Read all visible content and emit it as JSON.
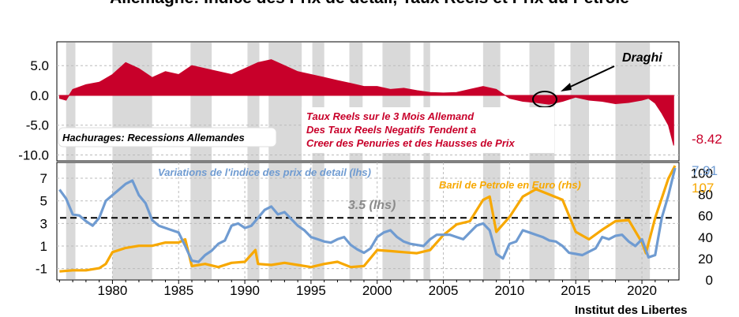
{
  "title": "Allemagne: Indice des Prix de detail, Taux Reels et Prix du Petrole",
  "credit": "Institut des Libertes",
  "colors": {
    "real_rate": "#c8002a",
    "inflation": "#6f9bd1",
    "oil": "#f7a800",
    "recession": "#d9d9d9",
    "threshold": "#000000"
  },
  "chart_data": [
    {
      "type": "area",
      "ylim": [
        -11,
        9
      ],
      "yticks": [
        5.0,
        0.0,
        -5.0,
        -10.0
      ],
      "ytick_labels": [
        "5.0",
        "0.0",
        "-5.0",
        "-10.0"
      ],
      "recessions": [
        [
          1976.5,
          1977.2
        ],
        [
          1980.0,
          1983.0
        ],
        [
          1985.9,
          1987.5
        ],
        [
          1990.2,
          1991.1
        ],
        [
          1991.8,
          1994.3
        ],
        [
          1995.1,
          1996.0
        ],
        [
          1997.9,
          1998.9
        ],
        [
          2000.4,
          2002.5
        ],
        [
          2003.5,
          2004.0
        ],
        [
          2008.0,
          2009.3
        ],
        [
          2011.5,
          2013.4
        ],
        [
          2014.6,
          2016.0
        ],
        [
          2018.0,
          2020.6
        ]
      ],
      "series": [
        {
          "name": "Taux Reels sur le 3 Mois Allemand",
          "x": [
            1976.0,
            1976.5,
            1977.0,
            1978.0,
            1979.0,
            1980.0,
            1981.0,
            1982.0,
            1983.0,
            1984.0,
            1985.0,
            1986.0,
            1987.0,
            1988.0,
            1989.0,
            1990.0,
            1991.0,
            1992.0,
            1993.0,
            1994.0,
            1995.0,
            1996.0,
            1997.0,
            1998.0,
            1999.0,
            2000.0,
            2001.0,
            2002.0,
            2003.0,
            2004.0,
            2005.0,
            2006.0,
            2007.0,
            2008.0,
            2009.0,
            2010.0,
            2011.0,
            2012.0,
            2013.0,
            2014.0,
            2015.0,
            2016.0,
            2017.0,
            2018.0,
            2019.0,
            2020.0,
            2020.5,
            2021.0,
            2021.5,
            2022.0,
            2022.4
          ],
          "values": [
            -0.5,
            -0.8,
            1.0,
            1.8,
            2.2,
            3.5,
            5.5,
            4.5,
            3.0,
            4.0,
            3.5,
            5.0,
            4.5,
            4.0,
            3.5,
            4.5,
            5.5,
            6.0,
            5.0,
            4.0,
            3.5,
            3.0,
            2.5,
            2.0,
            1.5,
            1.5,
            1.0,
            1.2,
            0.8,
            0.5,
            0.4,
            0.5,
            1.0,
            1.5,
            1.0,
            -0.5,
            -1.0,
            -1.2,
            -1.5,
            -1.0,
            -0.3,
            -0.8,
            -1.0,
            -1.4,
            -1.2,
            -0.8,
            -0.5,
            -1.3,
            -3.0,
            -5.0,
            -8.42
          ]
        }
      ],
      "last_value_label": "-8.42",
      "annotations": {
        "draghi": "Draghi",
        "legend_box": "Hachurages: Recessions Allemandes",
        "note_lines": [
          "Taux Reels sur le 3 Mois Allemand",
          "Des Taux Reels Negatifs Tendent a",
          "Creer des Penuries et des Hausses de Prix"
        ]
      }
    },
    {
      "type": "line",
      "x_ticks": [
        1980,
        1985,
        1990,
        1995,
        2000,
        2005,
        2010,
        2015,
        2020
      ],
      "xlim": [
        1975.8,
        2022.8
      ],
      "y_left": {
        "ylim": [
          -2,
          8.4
        ],
        "ticks": [
          7,
          5,
          3,
          1,
          -1
        ]
      },
      "y_right": {
        "ylim": [
          0,
          110
        ],
        "ticks": [
          100,
          80,
          60,
          40,
          20,
          0
        ]
      },
      "threshold": {
        "value": 3.5,
        "label": "3.5 (lhs)"
      },
      "series": [
        {
          "name": "Variations de l'indice des prix de detail (lhs)",
          "axis": "left",
          "x": [
            1976.0,
            1976.5,
            1977.0,
            1977.5,
            1978.0,
            1978.5,
            1979.0,
            1979.5,
            1980.0,
            1980.5,
            1981.0,
            1981.5,
            1982.0,
            1982.5,
            1983.0,
            1983.5,
            1984.0,
            1984.5,
            1985.0,
            1985.5,
            1986.0,
            1986.5,
            1987.0,
            1987.5,
            1988.0,
            1988.5,
            1989.0,
            1989.5,
            1990.0,
            1990.5,
            1991.0,
            1991.5,
            1992.0,
            1992.5,
            1993.0,
            1993.5,
            1994.0,
            1994.5,
            1995.0,
            1995.5,
            1996.0,
            1996.5,
            1997.0,
            1997.5,
            1998.0,
            1998.5,
            1999.0,
            1999.5,
            2000.0,
            2000.5,
            2001.0,
            2001.5,
            2002.0,
            2002.5,
            2003.0,
            2003.5,
            2004.0,
            2004.5,
            2005.0,
            2005.5,
            2006.0,
            2006.5,
            2007.0,
            2007.5,
            2008.0,
            2008.5,
            2009.0,
            2009.5,
            2010.0,
            2010.5,
            2011.0,
            2011.5,
            2012.0,
            2012.5,
            2013.0,
            2013.5,
            2014.0,
            2014.5,
            2015.0,
            2015.5,
            2016.0,
            2016.5,
            2017.0,
            2017.5,
            2018.0,
            2018.5,
            2019.0,
            2019.5,
            2020.0,
            2020.5,
            2021.0,
            2021.5,
            2022.0,
            2022.5
          ],
          "values": [
            6.0,
            5.2,
            3.8,
            3.7,
            3.2,
            2.8,
            3.5,
            5.0,
            5.5,
            6.0,
            6.5,
            6.8,
            5.5,
            4.8,
            3.3,
            2.8,
            2.6,
            2.4,
            2.2,
            1.0,
            -0.3,
            -0.4,
            0.2,
            0.6,
            1.2,
            1.5,
            2.8,
            3.0,
            2.6,
            2.8,
            3.5,
            4.2,
            4.5,
            3.8,
            4.0,
            3.4,
            2.8,
            2.4,
            1.8,
            1.6,
            1.4,
            1.3,
            1.6,
            1.8,
            1.1,
            0.7,
            0.4,
            0.8,
            1.8,
            2.2,
            2.4,
            1.8,
            1.4,
            1.2,
            1.1,
            1.0,
            1.6,
            2.0,
            2.0,
            2.0,
            1.8,
            1.6,
            2.2,
            2.8,
            3.0,
            2.4,
            0.3,
            -0.1,
            1.2,
            1.4,
            2.4,
            2.2,
            2.0,
            1.8,
            1.5,
            1.4,
            1.0,
            0.4,
            0.3,
            0.2,
            0.5,
            0.8,
            1.8,
            1.6,
            1.9,
            2.0,
            1.4,
            1.0,
            1.6,
            0.0,
            0.2,
            3.5,
            5.5,
            7.91
          ]
        },
        {
          "name": "Baril de Petrole en Euro (rhs)",
          "axis": "right",
          "x": [
            1976.0,
            1977.0,
            1978.0,
            1979.0,
            1979.5,
            1980.0,
            1981.0,
            1982.0,
            1983.0,
            1984.0,
            1985.0,
            1985.5,
            1986.0,
            1987.0,
            1988.0,
            1989.0,
            1990.0,
            1990.8,
            1991.0,
            1992.0,
            1993.0,
            1994.0,
            1995.0,
            1996.0,
            1997.0,
            1998.0,
            1999.0,
            2000.0,
            2001.0,
            2002.0,
            2003.0,
            2004.0,
            2005.0,
            2006.0,
            2007.0,
            2008.0,
            2008.5,
            2009.0,
            2010.0,
            2011.0,
            2012.0,
            2013.0,
            2014.0,
            2015.0,
            2016.0,
            2017.0,
            2018.0,
            2019.0,
            2020.0,
            2020.3,
            2021.0,
            2022.0,
            2022.5
          ],
          "values": [
            8,
            9,
            9,
            11,
            15,
            26,
            30,
            32,
            32,
            35,
            35,
            38,
            13,
            15,
            12,
            16,
            17,
            28,
            15,
            14,
            16,
            14,
            12,
            15,
            17,
            12,
            13,
            28,
            27,
            26,
            25,
            28,
            42,
            52,
            55,
            75,
            78,
            45,
            59,
            78,
            85,
            80,
            75,
            45,
            38,
            47,
            55,
            56,
            35,
            25,
            58,
            95,
            107
          ]
        }
      ],
      "last_value_labels": {
        "left": "7.91",
        "right": "107"
      }
    }
  ]
}
